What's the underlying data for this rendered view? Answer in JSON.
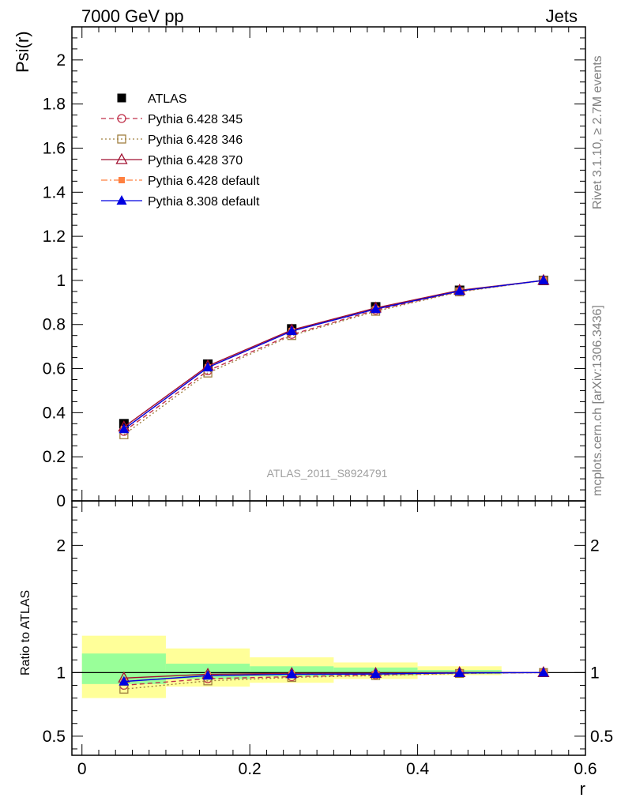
{
  "header": {
    "left_title": "7000 GeV pp",
    "right_title": "Jets"
  },
  "side_labels": {
    "rivet": "Rivet 3.1.10, ≥ 2.7M events",
    "mcplots": "mcplots.cern.ch [arXiv:1306.3436]"
  },
  "watermark": "ATLAS_2011_S8924791",
  "colors": {
    "band_inner": "#99ff99",
    "band_outer": "#ffff99"
  },
  "chart_data": [
    {
      "type": "line",
      "panel": "main",
      "ylabel": "Psi(r)",
      "xlim": [
        -0.012,
        0.6
      ],
      "ylim": [
        0,
        2.15
      ],
      "yticks": [
        0,
        0.2,
        0.4,
        0.6,
        0.8,
        1,
        1.2,
        1.4,
        1.6,
        1.8,
        2
      ],
      "ytick_labels": [
        "0",
        "0.2",
        "0.4",
        "0.6",
        "0.8",
        "1",
        "1.2",
        "1.4",
        "1.6",
        "1.8",
        "2"
      ],
      "legend_position": "top-left",
      "x": [
        0.05,
        0.15,
        0.25,
        0.35,
        0.45,
        0.55
      ],
      "series": [
        {
          "name": "ATLAS",
          "color": "#000000",
          "marker": "square-filled",
          "dash": "none",
          "values": [
            0.35,
            0.62,
            0.78,
            0.88,
            0.955,
            1.0
          ]
        },
        {
          "name": "Pythia 6.428 345",
          "color": "#c0304a",
          "marker": "circle-open",
          "dash": "dashed",
          "values": [
            0.315,
            0.59,
            0.755,
            0.865,
            0.95,
            1.0
          ]
        },
        {
          "name": "Pythia 6.428 346",
          "color": "#a08040",
          "marker": "square-open",
          "dash": "dotted",
          "values": [
            0.3,
            0.58,
            0.75,
            0.86,
            0.948,
            1.0
          ]
        },
        {
          "name": "Pythia 6.428 370",
          "color": "#a01030",
          "marker": "triangle-open",
          "dash": "solid",
          "values": [
            0.335,
            0.612,
            0.775,
            0.875,
            0.955,
            1.0
          ]
        },
        {
          "name": "Pythia 6.428 default",
          "color": "#ff8040",
          "marker": "square-small",
          "dash": "dashdot",
          "values": [
            0.325,
            0.605,
            0.77,
            0.87,
            0.952,
            1.0
          ]
        },
        {
          "name": "Pythia 8.308 default",
          "color": "#0000e0",
          "marker": "triangle-filled",
          "dash": "solid",
          "values": [
            0.325,
            0.605,
            0.77,
            0.87,
            0.952,
            1.0
          ]
        }
      ]
    },
    {
      "type": "line",
      "panel": "ratio",
      "ylabel": "Ratio to ATLAS",
      "xlabel": "r",
      "xlim": [
        -0.012,
        0.6
      ],
      "ylim": [
        0.35,
        2.35
      ],
      "yticks": [
        0.5,
        1,
        2
      ],
      "ytick_labels": [
        "0.5",
        "1",
        "2"
      ],
      "xticks": [
        0,
        0.2,
        0.4,
        0.6
      ],
      "xtick_labels": [
        "0",
        "0.2",
        "0.4",
        "0.6"
      ],
      "bins": [
        [
          0.0,
          0.1
        ],
        [
          0.1,
          0.2
        ],
        [
          0.2,
          0.3
        ],
        [
          0.3,
          0.4
        ],
        [
          0.4,
          0.5
        ],
        [
          0.5,
          0.6
        ]
      ],
      "band_inner": [
        [
          0.91,
          1.15
        ],
        [
          0.95,
          1.07
        ],
        [
          0.97,
          1.05
        ],
        [
          0.98,
          1.04
        ],
        [
          0.99,
          1.02
        ],
        [
          1.0,
          1.0
        ]
      ],
      "band_outer": [
        [
          0.8,
          1.29
        ],
        [
          0.89,
          1.19
        ],
        [
          0.92,
          1.12
        ],
        [
          0.95,
          1.08
        ],
        [
          0.98,
          1.05
        ],
        [
          1.0,
          1.0
        ]
      ],
      "x": [
        0.05,
        0.15,
        0.25,
        0.35,
        0.45,
        0.55
      ],
      "series": [
        {
          "name": "Pythia 6.428 345",
          "values": [
            0.9,
            0.952,
            0.968,
            0.983,
            0.995,
            1.0
          ]
        },
        {
          "name": "Pythia 6.428 346",
          "values": [
            0.87,
            0.935,
            0.962,
            0.977,
            0.993,
            1.0
          ]
        },
        {
          "name": "Pythia 6.428 370",
          "values": [
            0.957,
            0.987,
            0.994,
            0.994,
            1.0,
            1.0
          ]
        },
        {
          "name": "Pythia 6.428 default",
          "values": [
            0.93,
            0.976,
            0.987,
            0.989,
            0.997,
            1.0
          ]
        },
        {
          "name": "Pythia 8.308 default",
          "values": [
            0.93,
            0.976,
            0.987,
            0.989,
            0.997,
            1.0
          ]
        }
      ]
    }
  ]
}
